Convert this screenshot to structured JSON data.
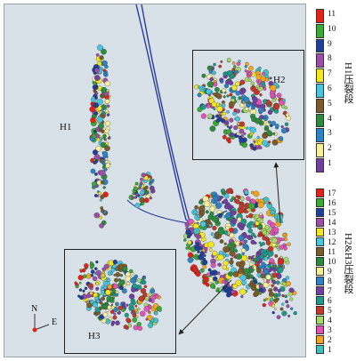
{
  "labels": {
    "h1": "H1",
    "h2": "H2",
    "h3": "H3",
    "north": "N",
    "east": "E"
  },
  "legend_h1": {
    "title": "H1压裂段",
    "items": [
      {
        "label": "11",
        "color": "#e2231a"
      },
      {
        "label": "10",
        "color": "#3aa935"
      },
      {
        "label": "9",
        "color": "#1f3f99"
      },
      {
        "label": "8",
        "color": "#9b4fa6"
      },
      {
        "label": "7",
        "color": "#f4e61f"
      },
      {
        "label": "6",
        "color": "#49c6dd"
      },
      {
        "label": "5",
        "color": "#7b5a2b"
      },
      {
        "label": "4",
        "color": "#2e8b3d"
      },
      {
        "label": "3",
        "color": "#2d83c4"
      },
      {
        "label": "2",
        "color": "#f7ef9c"
      },
      {
        "label": "1",
        "color": "#7040a0"
      }
    ]
  },
  "legend_h2h3": {
    "title": "H2&H3压裂段",
    "items": [
      {
        "label": "17",
        "color": "#e2231a"
      },
      {
        "label": "16",
        "color": "#3aa935"
      },
      {
        "label": "15",
        "color": "#1f3f99"
      },
      {
        "label": "14",
        "color": "#9b4fa6"
      },
      {
        "label": "13",
        "color": "#f4e61f"
      },
      {
        "label": "12",
        "color": "#49c6dd"
      },
      {
        "label": "11",
        "color": "#7b5a2b"
      },
      {
        "label": "10",
        "color": "#2e8b3d"
      },
      {
        "label": "9",
        "color": "#f7ef9c"
      },
      {
        "label": "8",
        "color": "#2d83c4"
      },
      {
        "label": "7",
        "color": "#7040a0"
      },
      {
        "label": "6",
        "color": "#1f9a8a"
      },
      {
        "label": "5",
        "color": "#c0392b"
      },
      {
        "label": "4",
        "color": "#a6d96a"
      },
      {
        "label": "3",
        "color": "#e055b3"
      },
      {
        "label": "2",
        "color": "#f2a51f"
      },
      {
        "label": "1",
        "color": "#40c0c0"
      }
    ]
  },
  "colors": {
    "well_line": "#2b3aa0",
    "panel_bg": "#d9e1e8",
    "inset_border": "#222222"
  }
}
